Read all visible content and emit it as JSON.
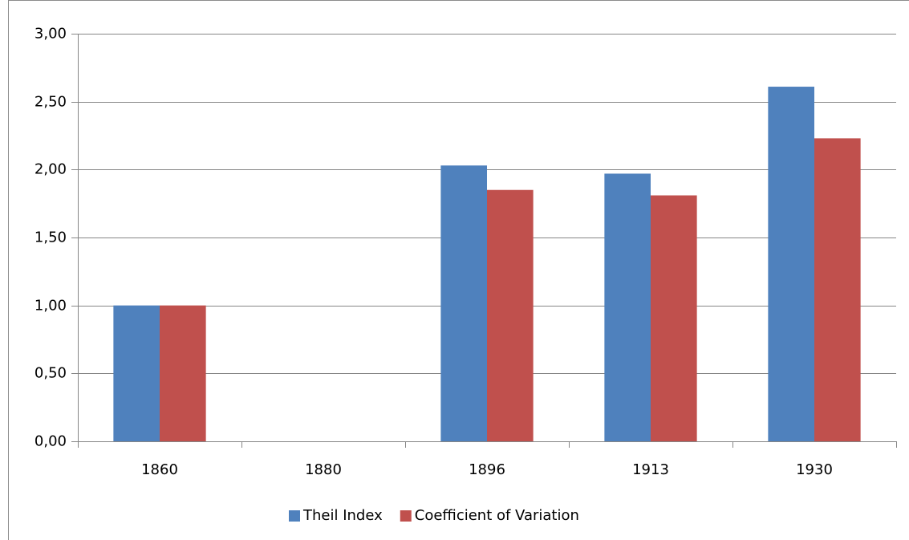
{
  "chart_data": {
    "type": "bar",
    "categories": [
      "1860",
      "1880",
      "1896",
      "1913",
      "1930"
    ],
    "series": [
      {
        "name": "Theil Index",
        "color": "#4f81bd",
        "values": [
          1.0,
          null,
          2.03,
          1.97,
          2.61
        ]
      },
      {
        "name": "Coefficient of Variation",
        "color": "#c0504d",
        "values": [
          1.0,
          null,
          1.85,
          1.81,
          2.23
        ]
      }
    ],
    "ylim": [
      0,
      3
    ],
    "yticks": [
      {
        "value": 0,
        "label": "0,00"
      },
      {
        "value": 0.5,
        "label": "0,50"
      },
      {
        "value": 1,
        "label": "1,00"
      },
      {
        "value": 1.5,
        "label": "1,50"
      },
      {
        "value": 2,
        "label": "2,00"
      },
      {
        "value": 2.5,
        "label": "2,50"
      },
      {
        "value": 3,
        "label": "3,00"
      }
    ],
    "grid": true,
    "legend": "bottom"
  }
}
